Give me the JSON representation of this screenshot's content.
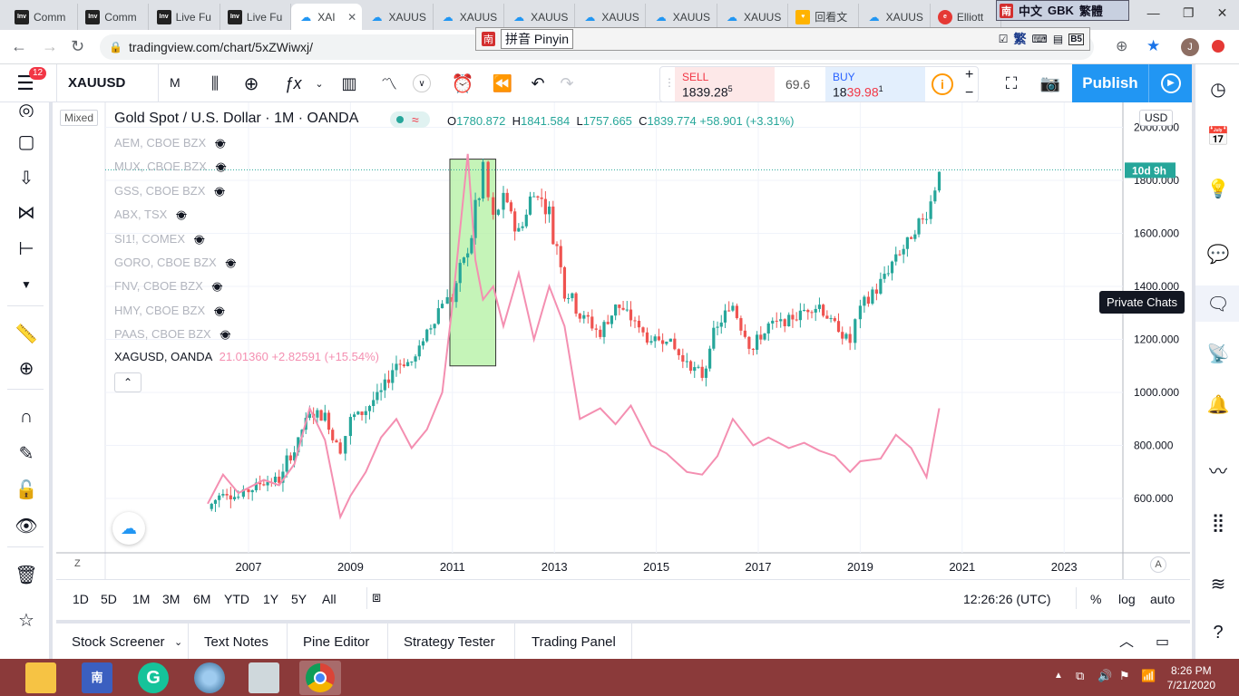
{
  "browser": {
    "tabs": [
      {
        "title": "Comm",
        "favicon": "Inv"
      },
      {
        "title": "Comm",
        "favicon": "Inv"
      },
      {
        "title": "Live Fu",
        "favicon": "Inv"
      },
      {
        "title": "Live Fu",
        "favicon": "Inv"
      },
      {
        "title": "XAI",
        "favicon": "tv",
        "active": true
      },
      {
        "title": "XAUUS",
        "favicon": "tv"
      },
      {
        "title": "XAUUS",
        "favicon": "tv"
      },
      {
        "title": "XAUUS",
        "favicon": "tv"
      },
      {
        "title": "XAUUS",
        "favicon": "tv"
      },
      {
        "title": "XAUUS",
        "favicon": "tv"
      },
      {
        "title": "XAUUS",
        "favicon": "tv"
      },
      {
        "title": "回看文",
        "favicon": "heart"
      },
      {
        "title": "XAUUS",
        "favicon": "tv"
      },
      {
        "title": "Elliott",
        "favicon": "ew"
      }
    ],
    "url": "tradingview.com/chart/5xZWiwxj/",
    "profile_initial": "J",
    "ime_top": {
      "char": "南",
      "a": "中文",
      "b": "GBK",
      "c": "繁體"
    },
    "ime_bar": {
      "char": "南",
      "mode": "拼音 Pinyin",
      "trad": "繁",
      "b5": "B5"
    }
  },
  "toolbar": {
    "badge": "12",
    "symbol": "XAUUSD",
    "interval": "M",
    "sell_label": "SELL",
    "sell_price": "1839.28",
    "sell_sup": "5",
    "spread": "69.6",
    "buy_label": "BUY",
    "buy_price_a": "18",
    "buy_price_b": "39.98",
    "buy_sup": "1",
    "publish": "Publish"
  },
  "chart": {
    "mode_label": "Mixed",
    "title": "Gold Spot / U.S. Dollar · 1M · OANDA",
    "ohlc": {
      "o_label": "O",
      "o": "1780.872",
      "h_label": "H",
      "h": "1841.584",
      "l_label": "L",
      "l": "1757.665",
      "c_label": "C",
      "c": "1839.774",
      "chg": "+58.901 (+3.31%)"
    },
    "currency": "USD",
    "countdown": "10d 9h",
    "legend_hidden": [
      "AEM, CBOE BZX",
      "MUX, CBOE BZX",
      "GSS, CBOE BZX",
      "ABX, TSX",
      "SI1!, COMEX",
      "GORO, CBOE BZX",
      "FNV, CBOE BZX",
      "HMY, CBOE BZX",
      "PAAS, CBOE BZX"
    ],
    "xag_label": "XAGUSD, OANDA",
    "xag_value": "21.01360",
    "xag_change": "+2.82591 (+15.54%)",
    "z_label": "Z",
    "a_label": "A",
    "tooltip": "Private Chats",
    "colors": {
      "up": "#26a69a",
      "down": "#ef5350",
      "silver_line": "#f48fb1",
      "highlight": "#b2f0a0",
      "countdown_bg": "#26a69a"
    }
  },
  "chart_data": {
    "type": "line",
    "yticks": [
      "600.000",
      "800.000",
      "1000.000",
      "1200.000",
      "1400.000",
      "1600.000",
      "1800.000",
      "2000.000"
    ],
    "xticks": [
      "2007",
      "2009",
      "2011",
      "2013",
      "2015",
      "2017",
      "2019",
      "2021",
      "2023"
    ],
    "gold_close": [
      [
        2006.2,
        560
      ],
      [
        2006.5,
        630
      ],
      [
        2006.8,
        605
      ],
      [
        2007.0,
        630
      ],
      [
        2007.3,
        665
      ],
      [
        2007.6,
        670
      ],
      [
        2007.9,
        790
      ],
      [
        2008.2,
        925
      ],
      [
        2008.5,
        910
      ],
      [
        2008.8,
        780
      ],
      [
        2009.0,
        900
      ],
      [
        2009.3,
        935
      ],
      [
        2009.6,
        1000
      ],
      [
        2009.9,
        1110
      ],
      [
        2010.2,
        1115
      ],
      [
        2010.5,
        1220
      ],
      [
        2010.8,
        1350
      ],
      [
        2011.0,
        1350
      ],
      [
        2011.3,
        1540
      ],
      [
        2011.6,
        1820
      ],
      [
        2011.8,
        1640
      ],
      [
        2012.0,
        1740
      ],
      [
        2012.3,
        1600
      ],
      [
        2012.6,
        1770
      ],
      [
        2012.9,
        1680
      ],
      [
        2013.2,
        1410
      ],
      [
        2013.5,
        1300
      ],
      [
        2013.9,
        1220
      ],
      [
        2014.2,
        1330
      ],
      [
        2014.5,
        1280
      ],
      [
        2014.9,
        1190
      ],
      [
        2015.2,
        1210
      ],
      [
        2015.6,
        1110
      ],
      [
        2015.9,
        1060
      ],
      [
        2016.2,
        1250
      ],
      [
        2016.5,
        1330
      ],
      [
        2016.9,
        1170
      ],
      [
        2017.2,
        1250
      ],
      [
        2017.6,
        1270
      ],
      [
        2017.9,
        1310
      ],
      [
        2018.2,
        1330
      ],
      [
        2018.5,
        1250
      ],
      [
        2018.8,
        1190
      ],
      [
        2019.0,
        1320
      ],
      [
        2019.4,
        1410
      ],
      [
        2019.7,
        1510
      ],
      [
        2020.0,
        1580
      ],
      [
        2020.3,
        1680
      ],
      [
        2020.55,
        1840
      ]
    ],
    "silver_series": [
      [
        2006.2,
        580
      ],
      [
        2006.5,
        690
      ],
      [
        2006.8,
        620
      ],
      [
        2007.0,
        640
      ],
      [
        2007.3,
        670
      ],
      [
        2007.6,
        650
      ],
      [
        2007.9,
        730
      ],
      [
        2008.2,
        940
      ],
      [
        2008.5,
        820
      ],
      [
        2008.8,
        530
      ],
      [
        2009.0,
        610
      ],
      [
        2009.3,
        700
      ],
      [
        2009.6,
        830
      ],
      [
        2009.9,
        900
      ],
      [
        2010.2,
        790
      ],
      [
        2010.5,
        860
      ],
      [
        2010.8,
        1000
      ],
      [
        2011.0,
        1330
      ],
      [
        2011.3,
        1900
      ],
      [
        2011.45,
        1500
      ],
      [
        2011.6,
        1350
      ],
      [
        2011.8,
        1400
      ],
      [
        2012.0,
        1250
      ],
      [
        2012.3,
        1450
      ],
      [
        2012.6,
        1200
      ],
      [
        2012.9,
        1400
      ],
      [
        2013.2,
        1250
      ],
      [
        2013.5,
        900
      ],
      [
        2013.9,
        940
      ],
      [
        2014.2,
        880
      ],
      [
        2014.5,
        950
      ],
      [
        2014.9,
        800
      ],
      [
        2015.2,
        770
      ],
      [
        2015.6,
        700
      ],
      [
        2015.9,
        690
      ],
      [
        2016.2,
        760
      ],
      [
        2016.5,
        900
      ],
      [
        2016.9,
        800
      ],
      [
        2017.2,
        830
      ],
      [
        2017.6,
        790
      ],
      [
        2017.9,
        810
      ],
      [
        2018.2,
        780
      ],
      [
        2018.5,
        760
      ],
      [
        2018.8,
        700
      ],
      [
        2019.0,
        740
      ],
      [
        2019.4,
        750
      ],
      [
        2019.7,
        840
      ],
      [
        2020.0,
        790
      ],
      [
        2020.3,
        680
      ],
      [
        2020.55,
        940
      ]
    ],
    "highlight_range_x": [
      2010.95,
      2011.85
    ],
    "current_price": 1839.774
  },
  "range": {
    "buttons": [
      "1D",
      "5D",
      "1M",
      "3M",
      "6M",
      "YTD",
      "1Y",
      "5Y",
      "All"
    ],
    "time": "12:26:26 (UTC)",
    "pct": "%",
    "log": "log",
    "auto": "auto"
  },
  "panel_tabs": [
    "Stock Screener",
    "Text Notes",
    "Pine Editor",
    "Strategy Tester",
    "Trading Panel"
  ],
  "taskbar": {
    "time": "8:26 PM",
    "date": "7/21/2020"
  }
}
